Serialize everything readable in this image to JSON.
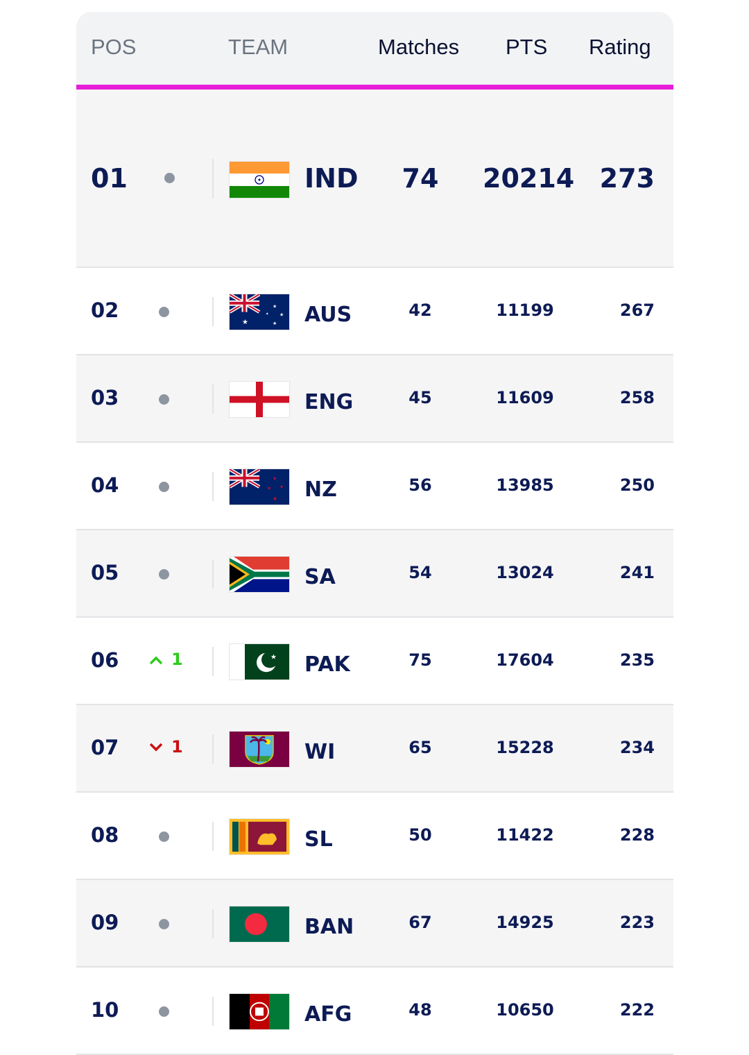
{
  "header": {
    "pos": "POS",
    "team": "TEAM",
    "matches": "Matches",
    "pts": "PTS",
    "rating": "Rating"
  },
  "colors": {
    "accent": "#e61ed8",
    "text": "#0d1b55",
    "up": "#2ecc1e",
    "down": "#cc1010"
  },
  "rows": [
    {
      "pos": "01",
      "movement": "none",
      "change": "",
      "team": "IND",
      "flag": "india-flag",
      "matches": "74",
      "pts": "20214",
      "rating": "273"
    },
    {
      "pos": "02",
      "movement": "none",
      "change": "",
      "team": "AUS",
      "flag": "australia-flag",
      "matches": "42",
      "pts": "11199",
      "rating": "267"
    },
    {
      "pos": "03",
      "movement": "none",
      "change": "",
      "team": "ENG",
      "flag": "england-flag",
      "matches": "45",
      "pts": "11609",
      "rating": "258"
    },
    {
      "pos": "04",
      "movement": "none",
      "change": "",
      "team": "NZ",
      "flag": "new-zealand-flag",
      "matches": "56",
      "pts": "13985",
      "rating": "250"
    },
    {
      "pos": "05",
      "movement": "none",
      "change": "",
      "team": "SA",
      "flag": "south-africa-flag",
      "matches": "54",
      "pts": "13024",
      "rating": "241"
    },
    {
      "pos": "06",
      "movement": "up",
      "change": "1",
      "team": "PAK",
      "flag": "pakistan-flag",
      "matches": "75",
      "pts": "17604",
      "rating": "235"
    },
    {
      "pos": "07",
      "movement": "down",
      "change": "1",
      "team": "WI",
      "flag": "west-indies-flag",
      "matches": "65",
      "pts": "15228",
      "rating": "234"
    },
    {
      "pos": "08",
      "movement": "none",
      "change": "",
      "team": "SL",
      "flag": "sri-lanka-flag",
      "matches": "50",
      "pts": "11422",
      "rating": "228"
    },
    {
      "pos": "09",
      "movement": "none",
      "change": "",
      "team": "BAN",
      "flag": "bangladesh-flag",
      "matches": "67",
      "pts": "14925",
      "rating": "223"
    },
    {
      "pos": "10",
      "movement": "none",
      "change": "",
      "team": "AFG",
      "flag": "afghanistan-flag",
      "matches": "48",
      "pts": "10650",
      "rating": "222"
    }
  ]
}
